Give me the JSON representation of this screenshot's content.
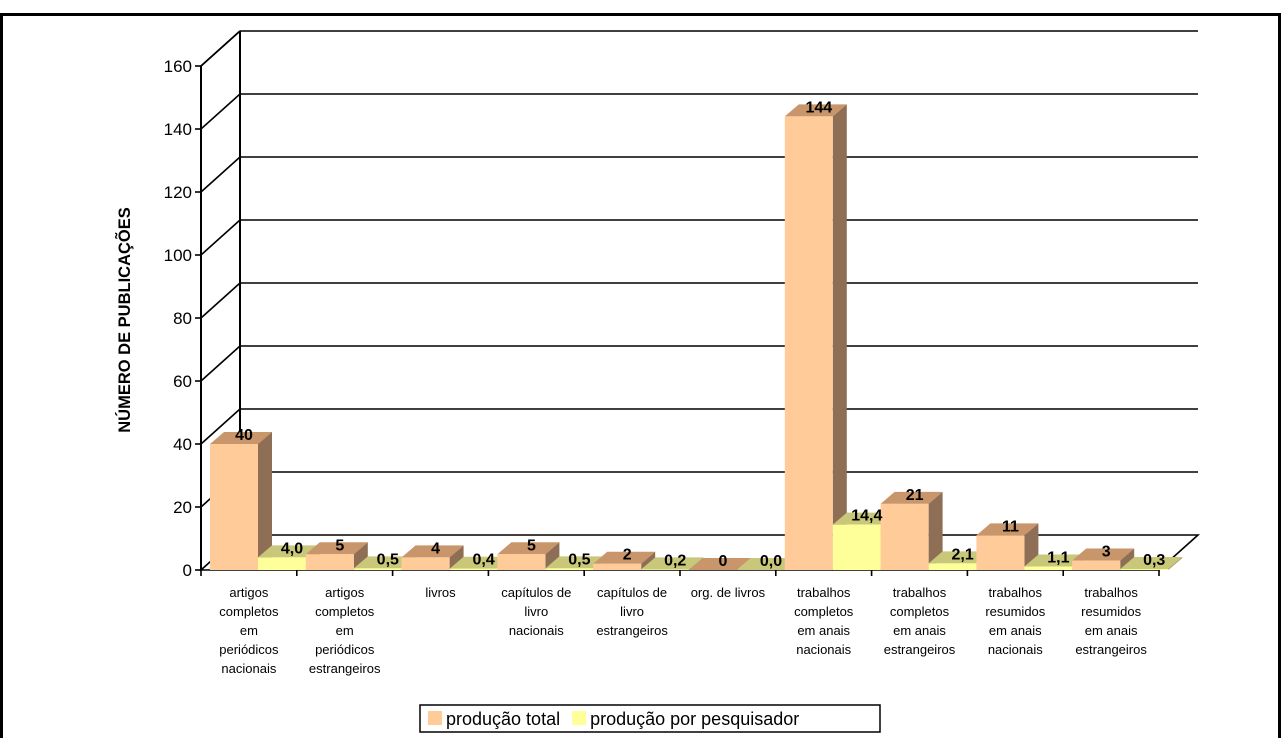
{
  "chart_data": {
    "type": "bar",
    "ylabel": "NÚMERO DE PUBLICAÇÕES",
    "xlabel": "",
    "ylim": [
      0,
      160
    ],
    "yticks": [
      0,
      20,
      40,
      60,
      80,
      100,
      120,
      140,
      160
    ],
    "grid": true,
    "legend_position": "bottom",
    "categories": [
      [
        "artigos",
        "completos",
        "em",
        "periódicos",
        "nacionais"
      ],
      [
        "artigos",
        "completos",
        "em",
        "periódicos",
        "estrangeiros"
      ],
      [
        "livros"
      ],
      [
        "capítulos de",
        "livro",
        "nacionais"
      ],
      [
        "capítulos de",
        "livro",
        "estrangeiros"
      ],
      [
        "org. de livros"
      ],
      [
        "trabalhos",
        "completos",
        "em anais",
        "nacionais"
      ],
      [
        "trabalhos",
        "completos",
        "em anais",
        "estrangeiros"
      ],
      [
        "trabalhos",
        "resumidos",
        "em anais",
        "nacionais"
      ],
      [
        "trabalhos",
        "resumidos",
        "em anais",
        "estrangeiros"
      ]
    ],
    "series": [
      {
        "name": "produção total",
        "color": "#FFCC99",
        "values": [
          40,
          5,
          4,
          5,
          2,
          0,
          144,
          21,
          11,
          3
        ],
        "labels": [
          "40",
          "5",
          "4",
          "5",
          "2",
          "0",
          "144",
          "21",
          "11",
          "3"
        ]
      },
      {
        "name": "produção por pesquisador",
        "color": "#FFFF99",
        "values": [
          4.0,
          0.5,
          0.4,
          0.5,
          0.2,
          0.0,
          14.4,
          2.1,
          1.1,
          0.3
        ],
        "labels": [
          "4,0",
          "0,5",
          "0,4",
          "0,5",
          "0,2",
          "0,0",
          "14,4",
          "2,1",
          "1,1",
          "0,3"
        ]
      }
    ]
  }
}
